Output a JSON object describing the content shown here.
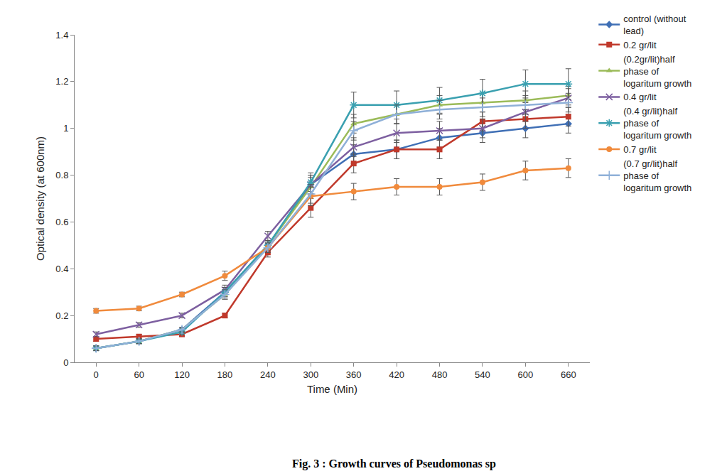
{
  "chart_data": {
    "type": "line",
    "title": "Fig. 3 : Growth curves of Pseudomonas sp",
    "x_label": "Time (Min)",
    "y_label": "Optical density (at 600nm)",
    "x": [
      0,
      60,
      120,
      180,
      240,
      300,
      360,
      420,
      480,
      540,
      600,
      660
    ],
    "xlim": [
      -30,
      690
    ],
    "xticks": [
      0,
      60,
      120,
      180,
      240,
      300,
      360,
      420,
      480,
      540,
      600,
      660
    ],
    "ylim": [
      0,
      1.4
    ],
    "yticks": [
      0,
      0.2,
      0.4,
      0.6,
      0.8,
      1,
      1.2,
      1.4
    ],
    "grid": false,
    "legend": "right",
    "series": [
      {
        "name": "control (without lead)",
        "color": "#3f6fb5",
        "marker": "diamond",
        "values": [
          0.06,
          0.09,
          0.14,
          0.3,
          0.5,
          0.76,
          0.89,
          0.91,
          0.96,
          0.98,
          1.0,
          1.02
        ],
        "error": [
          0.01,
          0.01,
          0.01,
          0.02,
          0.02,
          0.04,
          0.04,
          0.04,
          0.04,
          0.04,
          0.04,
          0.04
        ]
      },
      {
        "name": "0.2 gr/lit",
        "color": "#c0392b",
        "marker": "square",
        "values": [
          0.1,
          0.11,
          0.12,
          0.2,
          0.47,
          0.66,
          0.85,
          0.91,
          0.91,
          1.03,
          1.04,
          1.05
        ],
        "error": [
          0.01,
          0.01,
          0.01,
          0.01,
          0.02,
          0.04,
          0.04,
          0.04,
          0.04,
          0.04,
          0.04,
          0.04
        ]
      },
      {
        "name": "(0.2gr/lit)half phase of logaritum growth",
        "color": "#9bbb59",
        "marker": "triangle",
        "values": [
          0.06,
          0.09,
          0.14,
          0.29,
          0.5,
          0.75,
          1.02,
          1.06,
          1.1,
          1.11,
          1.12,
          1.14
        ],
        "error": [
          0.01,
          0.01,
          0.01,
          0.02,
          0.02,
          0.04,
          0.04,
          0.04,
          0.04,
          0.04,
          0.04,
          0.04
        ]
      },
      {
        "name": "0.4 gr/lit",
        "color": "#7d5fa0",
        "marker": "x",
        "values": [
          0.12,
          0.16,
          0.2,
          0.31,
          0.54,
          0.76,
          0.92,
          0.98,
          0.99,
          1.0,
          1.07,
          1.13
        ],
        "error": [
          0.01,
          0.01,
          0.01,
          0.02,
          0.02,
          0.04,
          0.04,
          0.04,
          0.04,
          0.04,
          0.04,
          0.04
        ]
      },
      {
        "name": "(0.4 gr/lit)half phase of logaritum growth",
        "color": "#3aa0b0",
        "marker": "asterisk",
        "values": [
          0.06,
          0.09,
          0.13,
          0.3,
          0.5,
          0.77,
          1.1,
          1.1,
          1.12,
          1.15,
          1.19,
          1.19
        ],
        "error": [
          0.01,
          0.01,
          0.01,
          0.02,
          0.02,
          0.04,
          0.055,
          0.06,
          0.055,
          0.06,
          0.06,
          0.065
        ]
      },
      {
        "name": "0.7 gr/lit",
        "color": "#f08a3c",
        "marker": "circle",
        "values": [
          0.22,
          0.23,
          0.29,
          0.37,
          0.49,
          0.71,
          0.73,
          0.75,
          0.75,
          0.77,
          0.82,
          0.83
        ],
        "error": [
          0.01,
          0.01,
          0.01,
          0.02,
          0.02,
          0.04,
          0.035,
          0.035,
          0.035,
          0.035,
          0.04,
          0.04
        ]
      },
      {
        "name": "(0.7 gr/lit)half phase of logaritum growth",
        "color": "#8fb0d8",
        "marker": "plus",
        "values": [
          0.06,
          0.09,
          0.14,
          0.29,
          0.49,
          0.72,
          0.99,
          1.06,
          1.08,
          1.09,
          1.1,
          1.11
        ],
        "error": [
          0.01,
          0.01,
          0.01,
          0.02,
          0.02,
          0.04,
          0.04,
          0.04,
          0.04,
          0.04,
          0.04,
          0.04
        ]
      }
    ]
  }
}
